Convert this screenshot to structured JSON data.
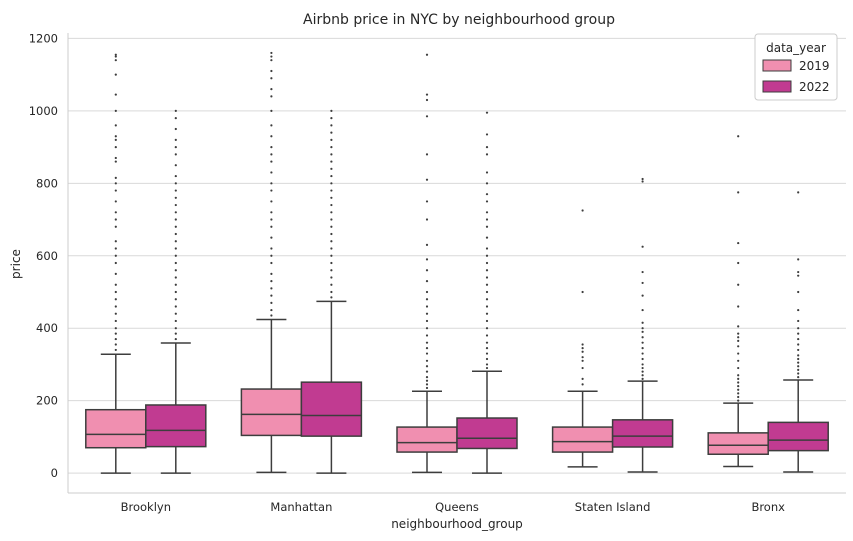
{
  "chart_data": {
    "type": "box",
    "title": "Airbnb price in NYC by neighbourhood group",
    "xlabel": "neighbourhood_group",
    "ylabel": "price",
    "ylim": [
      -55,
      1215
    ],
    "yticks": [
      0,
      200,
      400,
      600,
      800,
      1000,
      1200
    ],
    "grid": "y",
    "legend": {
      "title": "data_year",
      "placement": "top-right"
    },
    "categories": [
      "Brooklyn",
      "Manhattan",
      "Queens",
      "Staten Island",
      "Bronx"
    ],
    "series": [
      {
        "name": "2019",
        "color": "#f08fb0",
        "boxes": [
          {
            "whislo": 0,
            "q1": 70,
            "med": 107,
            "q3": 175,
            "whishi": 328,
            "fliers": [
              340,
              355,
              370,
              385,
              400,
              420,
              440,
              460,
              480,
              500,
              520,
              550,
              580,
              600,
              620,
              640,
              680,
              700,
              720,
              750,
              780,
              800,
              815,
              860,
              870,
              900,
              920,
              930,
              960,
              1000,
              1045,
              1100,
              1140,
              1150,
              1155
            ]
          },
          {
            "whislo": 2,
            "q1": 104,
            "med": 162,
            "q3": 232,
            "whishi": 424,
            "fliers": [
              435,
              450,
              470,
              490,
              510,
              530,
              550,
              580,
              600,
              620,
              650,
              680,
              700,
              720,
              750,
              780,
              800,
              830,
              860,
              880,
              900,
              930,
              960,
              1000,
              1040,
              1060,
              1090,
              1110,
              1140,
              1150,
              1160
            ]
          },
          {
            "whislo": 2,
            "q1": 58,
            "med": 84,
            "q3": 127,
            "whishi": 226,
            "fliers": [
              235,
              245,
              255,
              265,
              280,
              295,
              310,
              330,
              345,
              360,
              380,
              400,
              420,
              440,
              460,
              480,
              500,
              530,
              560,
              590,
              630,
              700,
              750,
              810,
              880,
              985,
              1030,
              1045,
              1155
            ]
          },
          {
            "whislo": 17,
            "q1": 58,
            "med": 87,
            "q3": 127,
            "whishi": 226,
            "fliers": [
              245,
              260,
              290,
              310,
              320,
              335,
              345,
              355,
              500,
              725
            ]
          },
          {
            "whislo": 18,
            "q1": 52,
            "med": 77,
            "q3": 111,
            "whishi": 193,
            "fliers": [
              200,
              210,
              220,
              230,
              240,
              250,
              260,
              270,
              290,
              310,
              330,
              350,
              365,
              375,
              385,
              405,
              460,
              520,
              580,
              635,
              775,
              930
            ]
          }
        ]
      },
      {
        "name": "2022",
        "color": "#c13b91",
        "boxes": [
          {
            "whislo": 0,
            "q1": 73,
            "med": 118,
            "q3": 188,
            "whishi": 359,
            "fliers": [
              370,
              385,
              400,
              420,
              440,
              460,
              480,
              500,
              520,
              540,
              560,
              580,
              600,
              620,
              640,
              660,
              680,
              700,
              720,
              740,
              760,
              780,
              800,
              820,
              850,
              880,
              900,
              920,
              950,
              980,
              1000
            ]
          },
          {
            "whislo": 0,
            "q1": 102,
            "med": 159,
            "q3": 251,
            "whishi": 474,
            "fliers": [
              485,
              500,
              520,
              540,
              560,
              580,
              600,
              620,
              640,
              660,
              680,
              700,
              720,
              740,
              760,
              780,
              800,
              820,
              840,
              860,
              880,
              900,
              920,
              940,
              960,
              980,
              1000
            ]
          },
          {
            "whislo": 0,
            "q1": 68,
            "med": 96,
            "q3": 152,
            "whishi": 281,
            "fliers": [
              290,
              300,
              315,
              330,
              345,
              360,
              380,
              400,
              420,
              440,
              460,
              480,
              500,
              520,
              540,
              560,
              580,
              600,
              620,
              650,
              680,
              700,
              720,
              750,
              770,
              800,
              830,
              880,
              900,
              935,
              995
            ]
          },
          {
            "whislo": 3,
            "q1": 72,
            "med": 102,
            "q3": 147,
            "whishi": 254,
            "fliers": [
              260,
              270,
              280,
              290,
              300,
              315,
              330,
              345,
              360,
              375,
              390,
              400,
              415,
              450,
              490,
              525,
              555,
              625,
              805,
              812
            ]
          },
          {
            "whislo": 3,
            "q1": 62,
            "med": 91,
            "q3": 140,
            "whishi": 257,
            "fliers": [
              265,
              275,
              285,
              295,
              305,
              315,
              325,
              340,
              355,
              370,
              385,
              400,
              420,
              450,
              500,
              545,
              555,
              590,
              775
            ]
          }
        ]
      }
    ]
  }
}
